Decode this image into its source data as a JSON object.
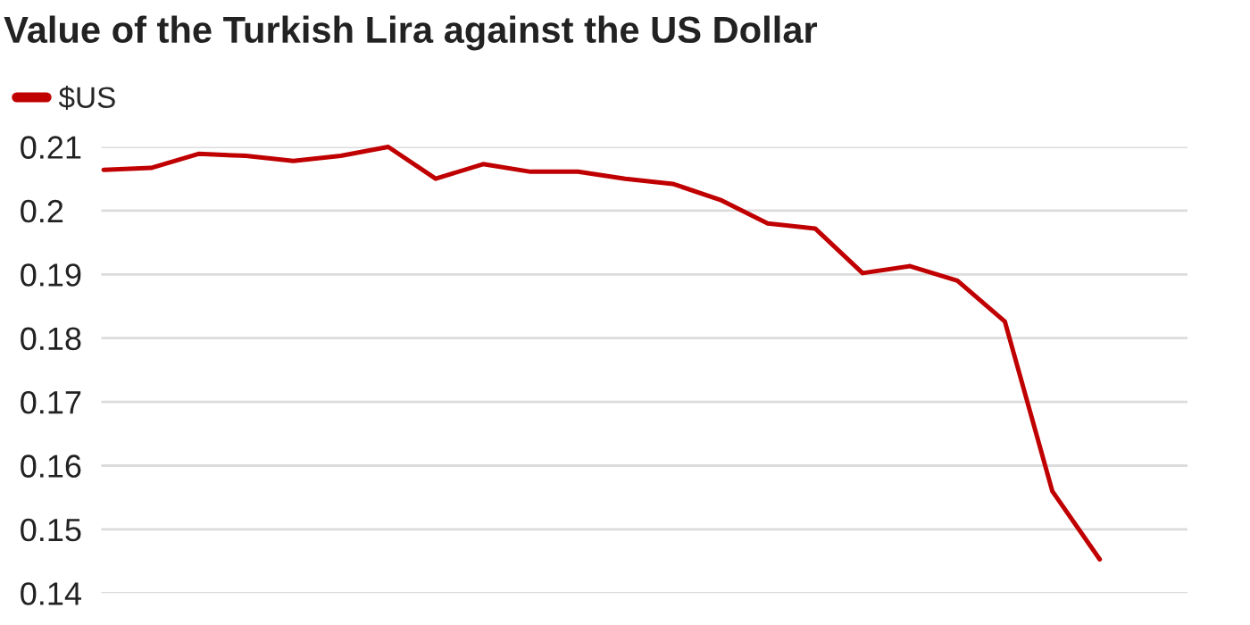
{
  "chart_data": {
    "type": "line",
    "title": "Value of the Turkish Lira against the US Dollar",
    "categories": [
      null,
      null,
      null,
      null,
      null,
      null,
      null,
      null,
      null,
      null,
      null,
      null,
      null,
      null,
      null,
      null,
      null,
      null,
      null,
      null,
      null,
      null
    ],
    "series": [
      {
        "name": "$US",
        "color": "#c00000",
        "values": [
          0.2064,
          0.2067,
          0.2089,
          0.2086,
          0.2078,
          0.2086,
          0.21,
          0.205,
          0.2073,
          0.2061,
          0.2061,
          0.205,
          0.2042,
          0.2017,
          0.198,
          0.1972,
          0.1902,
          0.1913,
          0.189,
          0.1826,
          0.156,
          0.1453
        ]
      }
    ],
    "ylim": [
      0.14,
      0.21
    ],
    "yticks": [
      0.14,
      0.15,
      0.16,
      0.17,
      0.18,
      0.19,
      0.2,
      0.21
    ],
    "grid": "y",
    "legend": "top left",
    "tick_labels": "y",
    "marker": "none",
    "line_style": "solid"
  }
}
